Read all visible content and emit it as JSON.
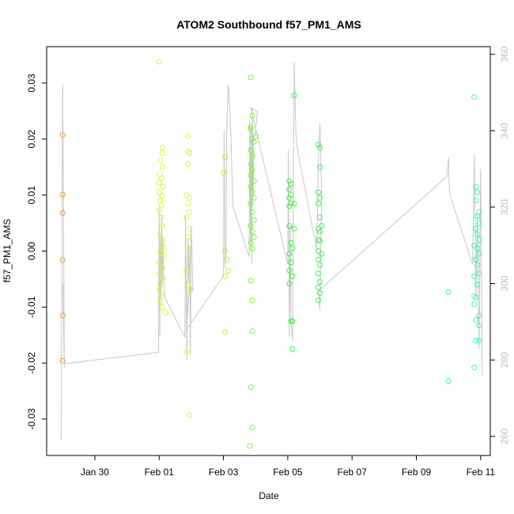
{
  "chart_data": {
    "type": "scatter",
    "title": "ATOM2 Southbound f57_PM1_AMS",
    "xlabel": "Date",
    "ylabel": "f57_PM1_AMS",
    "xlim": [
      -2.5,
      11.3
    ],
    "ylim": [
      -0.0365,
      0.0365
    ],
    "y2lim": [
      255,
      362
    ],
    "x_ticks": [
      {
        "value": -1,
        "label": "Jan 30"
      },
      {
        "value": 1,
        "label": "Feb 01"
      },
      {
        "value": 3,
        "label": "Feb 03"
      },
      {
        "value": 5,
        "label": "Feb 05"
      },
      {
        "value": 7,
        "label": "Feb 07"
      },
      {
        "value": 9,
        "label": "Feb 09"
      },
      {
        "value": 11,
        "label": "Feb 11"
      }
    ],
    "y_ticks": [
      {
        "value": -0.03,
        "label": "-0.03"
      },
      {
        "value": -0.02,
        "label": "-0.02"
      },
      {
        "value": -0.01,
        "label": "-0.01"
      },
      {
        "value": 0.0,
        "label": "0.00"
      },
      {
        "value": 0.01,
        "label": "0.01"
      },
      {
        "value": 0.02,
        "label": "0.02"
      },
      {
        "value": 0.03,
        "label": "0.03"
      }
    ],
    "y2_ticks": [
      {
        "value": 260,
        "label": "260"
      },
      {
        "value": 280,
        "label": "280"
      },
      {
        "value": 300,
        "label": "300"
      },
      {
        "value": 320,
        "label": "320"
      },
      {
        "value": 340,
        "label": "340"
      },
      {
        "value": 360,
        "label": "360"
      }
    ],
    "points": [
      {
        "x": -2.0,
        "y": 0.0207,
        "color": "#f39a3a"
      },
      {
        "x": -2.0,
        "y": 0.0101,
        "color": "#f39a3a"
      },
      {
        "x": -2.0,
        "y": 0.0068,
        "color": "#f39a3a"
      },
      {
        "x": -2.0,
        "y": -0.0016,
        "color": "#f39a3a"
      },
      {
        "x": -2.0,
        "y": -0.0115,
        "color": "#f39a3a"
      },
      {
        "x": -2.0,
        "y": -0.0196,
        "color": "#f39a3a"
      },
      {
        "x": 1.0,
        "y": 0.0338,
        "color": "#e4f23a"
      },
      {
        "x": 1.1,
        "y": 0.0185,
        "color": "#e4f23a"
      },
      {
        "x": 1.1,
        "y": 0.0175,
        "color": "#e4f23a"
      },
      {
        "x": 1.05,
        "y": 0.0162,
        "color": "#e4f23a"
      },
      {
        "x": 1.1,
        "y": 0.015,
        "color": "#e4f23a"
      },
      {
        "x": 1.02,
        "y": 0.0138,
        "color": "#e4f23a"
      },
      {
        "x": 1.08,
        "y": 0.013,
        "color": "#e4f23a"
      },
      {
        "x": 1.0,
        "y": 0.0122,
        "color": "#e4f23a"
      },
      {
        "x": 1.12,
        "y": 0.0115,
        "color": "#e4f23a"
      },
      {
        "x": 1.0,
        "y": 0.0105,
        "color": "#e4f23a"
      },
      {
        "x": 1.1,
        "y": 0.0098,
        "color": "#e4f23a"
      },
      {
        "x": 1.03,
        "y": 0.009,
        "color": "#e4f23a"
      },
      {
        "x": 1.08,
        "y": 0.0082,
        "color": "#e4f23a"
      },
      {
        "x": 1.0,
        "y": 0.0072,
        "color": "#e4f23a"
      },
      {
        "x": 1.06,
        "y": 0.006,
        "color": "#e4f23a"
      },
      {
        "x": 1.1,
        "y": 0.0045,
        "color": "#e4f23a"
      },
      {
        "x": 1.02,
        "y": 0.003,
        "color": "#e4f23a"
      },
      {
        "x": 1.12,
        "y": 0.002,
        "color": "#e4f23a"
      },
      {
        "x": 1.08,
        "y": 0.001,
        "color": "#e4f23a"
      },
      {
        "x": 1.15,
        "y": 0.0005,
        "color": "#e4f23a"
      },
      {
        "x": 1.04,
        "y": -0.0003,
        "color": "#e4f23a"
      },
      {
        "x": 1.15,
        "y": -0.001,
        "color": "#e4f23a"
      },
      {
        "x": 1.0,
        "y": -0.002,
        "color": "#e4f23a"
      },
      {
        "x": 1.1,
        "y": -0.003,
        "color": "#e4f23a"
      },
      {
        "x": 1.0,
        "y": -0.004,
        "color": "#e4f23a"
      },
      {
        "x": 1.12,
        "y": -0.0048,
        "color": "#e4f23a"
      },
      {
        "x": 1.02,
        "y": -0.006,
        "color": "#e4f23a"
      },
      {
        "x": 1.0,
        "y": -0.007,
        "color": "#e4f23a"
      },
      {
        "x": 1.08,
        "y": -0.008,
        "color": "#e4f23a"
      },
      {
        "x": 1.04,
        "y": -0.009,
        "color": "#e4f23a"
      },
      {
        "x": 1.1,
        "y": -0.01,
        "color": "#e4f23a"
      },
      {
        "x": 1.2,
        "y": -0.011,
        "color": "#e4f23a"
      },
      {
        "x": 1.9,
        "y": 0.0205,
        "color": "#e4f23a"
      },
      {
        "x": 1.9,
        "y": 0.0178,
        "color": "#e4f23a"
      },
      {
        "x": 1.95,
        "y": 0.0175,
        "color": "#e4f23a"
      },
      {
        "x": 1.9,
        "y": 0.0155,
        "color": "#e4f23a"
      },
      {
        "x": 1.85,
        "y": 0.01,
        "color": "#e4f23a"
      },
      {
        "x": 1.95,
        "y": 0.0095,
        "color": "#e4f23a"
      },
      {
        "x": 1.9,
        "y": 0.0085,
        "color": "#e4f23a"
      },
      {
        "x": 1.95,
        "y": 0.007,
        "color": "#e4f23a"
      },
      {
        "x": 1.85,
        "y": 0.006,
        "color": "#e4f23a"
      },
      {
        "x": 1.95,
        "y": 0.004,
        "color": "#e4f23a"
      },
      {
        "x": 1.9,
        "y": 0.0025,
        "color": "#e4f23a"
      },
      {
        "x": 1.9,
        "y": 0.0005,
        "color": "#e4f23a"
      },
      {
        "x": 1.95,
        "y": -0.0015,
        "color": "#e4f23a"
      },
      {
        "x": 1.85,
        "y": -0.0035,
        "color": "#e4f23a"
      },
      {
        "x": 1.9,
        "y": -0.006,
        "color": "#e4f23a"
      },
      {
        "x": 1.95,
        "y": -0.007,
        "color": "#e4f23a"
      },
      {
        "x": 1.85,
        "y": -0.018,
        "color": "#e4f23a"
      },
      {
        "x": 1.95,
        "y": -0.0293,
        "color": "#e4f23a"
      },
      {
        "x": 3.05,
        "y": 0.0168,
        "color": "#b4f23a"
      },
      {
        "x": 3.0,
        "y": 0.014,
        "color": "#b4f23a"
      },
      {
        "x": 3.05,
        "y": 0.0,
        "color": "#b4f23a"
      },
      {
        "x": 3.1,
        "y": -0.0015,
        "color": "#b4f23a"
      },
      {
        "x": 3.15,
        "y": -0.0035,
        "color": "#b4f23a"
      },
      {
        "x": 3.05,
        "y": -0.0045,
        "color": "#b4f23a"
      },
      {
        "x": 3.05,
        "y": -0.0145,
        "color": "#b4f23a"
      },
      {
        "x": 3.85,
        "y": 0.031,
        "color": "#7ef23a"
      },
      {
        "x": 3.9,
        "y": 0.0242,
        "color": "#7ef23a"
      },
      {
        "x": 3.85,
        "y": 0.0222,
        "color": "#7ef23a"
      },
      {
        "x": 3.85,
        "y": 0.0218,
        "color": "#7ef23a"
      },
      {
        "x": 4.0,
        "y": 0.0205,
        "color": "#7ef23a"
      },
      {
        "x": 3.88,
        "y": 0.02,
        "color": "#7ef23a"
      },
      {
        "x": 3.95,
        "y": 0.0195,
        "color": "#7ef23a"
      },
      {
        "x": 3.85,
        "y": 0.018,
        "color": "#7ef23a"
      },
      {
        "x": 3.9,
        "y": 0.017,
        "color": "#7ef23a"
      },
      {
        "x": 3.85,
        "y": 0.0155,
        "color": "#7ef23a"
      },
      {
        "x": 3.9,
        "y": 0.0145,
        "color": "#7ef23a"
      },
      {
        "x": 3.85,
        "y": 0.0135,
        "color": "#7ef23a"
      },
      {
        "x": 3.95,
        "y": 0.0125,
        "color": "#7ef23a"
      },
      {
        "x": 3.85,
        "y": 0.0115,
        "color": "#7ef23a"
      },
      {
        "x": 3.9,
        "y": 0.0105,
        "color": "#7ef23a"
      },
      {
        "x": 3.95,
        "y": 0.0095,
        "color": "#7ef23a"
      },
      {
        "x": 3.85,
        "y": 0.0085,
        "color": "#7ef23a"
      },
      {
        "x": 3.9,
        "y": 0.007,
        "color": "#7ef23a"
      },
      {
        "x": 3.95,
        "y": 0.0055,
        "color": "#7ef23a"
      },
      {
        "x": 3.85,
        "y": 0.0045,
        "color": "#7ef23a"
      },
      {
        "x": 3.9,
        "y": 0.0035,
        "color": "#7ef23a"
      },
      {
        "x": 3.95,
        "y": 0.0025,
        "color": "#7ef23a"
      },
      {
        "x": 3.85,
        "y": 0.0015,
        "color": "#7ef23a"
      },
      {
        "x": 3.9,
        "y": 0.0005,
        "color": "#7ef23a"
      },
      {
        "x": 3.85,
        "y": -0.0053,
        "color": "#7ef23a"
      },
      {
        "x": 3.9,
        "y": -0.0088,
        "color": "#7ef23a"
      },
      {
        "x": 3.9,
        "y": -0.0143,
        "color": "#7ef23a"
      },
      {
        "x": 3.85,
        "y": -0.0243,
        "color": "#7ef23a"
      },
      {
        "x": 3.9,
        "y": -0.0315,
        "color": "#7ef23a"
      },
      {
        "x": 3.82,
        "y": -0.0348,
        "color": "#7ef23a"
      },
      {
        "x": 5.2,
        "y": 0.0278,
        "color": "#3af23a"
      },
      {
        "x": 5.05,
        "y": 0.0125,
        "color": "#3af23a"
      },
      {
        "x": 5.1,
        "y": 0.012,
        "color": "#3af23a"
      },
      {
        "x": 5.05,
        "y": 0.011,
        "color": "#3af23a"
      },
      {
        "x": 5.1,
        "y": 0.01,
        "color": "#3af23a"
      },
      {
        "x": 5.05,
        "y": 0.0095,
        "color": "#3af23a"
      },
      {
        "x": 5.1,
        "y": 0.0085,
        "color": "#3af23a"
      },
      {
        "x": 5.05,
        "y": 0.008,
        "color": "#3af23a"
      },
      {
        "x": 5.2,
        "y": 0.0085,
        "color": "#3af23a"
      },
      {
        "x": 5.05,
        "y": 0.0045,
        "color": "#3af23a"
      },
      {
        "x": 5.2,
        "y": 0.004,
        "color": "#3af23a"
      },
      {
        "x": 5.1,
        "y": 0.0015,
        "color": "#3af23a"
      },
      {
        "x": 5.15,
        "y": 0.0005,
        "color": "#3af23a"
      },
      {
        "x": 5.05,
        "y": -0.0005,
        "color": "#3af23a"
      },
      {
        "x": 5.1,
        "y": -0.002,
        "color": "#3af23a"
      },
      {
        "x": 5.05,
        "y": -0.0035,
        "color": "#3af23a"
      },
      {
        "x": 5.15,
        "y": -0.0045,
        "color": "#3af23a"
      },
      {
        "x": 5.05,
        "y": -0.0058,
        "color": "#3af23a"
      },
      {
        "x": 5.1,
        "y": -0.0125,
        "color": "#3af23a"
      },
      {
        "x": 5.15,
        "y": -0.0125,
        "color": "#3af23a"
      },
      {
        "x": 5.15,
        "y": -0.0175,
        "color": "#3af23a"
      },
      {
        "x": 5.95,
        "y": 0.019,
        "color": "#3af25a"
      },
      {
        "x": 6.0,
        "y": 0.0185,
        "color": "#3af25a"
      },
      {
        "x": 6.0,
        "y": 0.015,
        "color": "#3af25a"
      },
      {
        "x": 5.95,
        "y": 0.0105,
        "color": "#3af25a"
      },
      {
        "x": 6.0,
        "y": 0.0095,
        "color": "#3af25a"
      },
      {
        "x": 5.95,
        "y": 0.0085,
        "color": "#3af25a"
      },
      {
        "x": 6.0,
        "y": 0.006,
        "color": "#3af25a"
      },
      {
        "x": 6.05,
        "y": 0.0045,
        "color": "#3af25a"
      },
      {
        "x": 5.95,
        "y": 0.004,
        "color": "#3af25a"
      },
      {
        "x": 6.0,
        "y": 0.0035,
        "color": "#3af25a"
      },
      {
        "x": 5.95,
        "y": 0.002,
        "color": "#3af25a"
      },
      {
        "x": 6.0,
        "y": 0.0018,
        "color": "#3af25a"
      },
      {
        "x": 5.95,
        "y": 0.0,
        "color": "#3af25a"
      },
      {
        "x": 6.05,
        "y": -0.0005,
        "color": "#3af25a"
      },
      {
        "x": 5.95,
        "y": -0.0015,
        "color": "#3af25a"
      },
      {
        "x": 6.0,
        "y": -0.0025,
        "color": "#3af25a"
      },
      {
        "x": 5.95,
        "y": -0.004,
        "color": "#3af25a"
      },
      {
        "x": 6.0,
        "y": -0.0055,
        "color": "#3af25a"
      },
      {
        "x": 5.95,
        "y": -0.0065,
        "color": "#3af25a"
      },
      {
        "x": 6.0,
        "y": -0.0075,
        "color": "#3af25a"
      },
      {
        "x": 5.95,
        "y": -0.0088,
        "color": "#3af25a"
      },
      {
        "x": 10.0,
        "y": -0.0073,
        "color": "#3af2a0"
      },
      {
        "x": 10.0,
        "y": -0.0232,
        "color": "#3af2a0"
      },
      {
        "x": 10.8,
        "y": 0.0275,
        "color": "#3af2c8"
      },
      {
        "x": 10.85,
        "y": 0.0115,
        "color": "#3af2c8"
      },
      {
        "x": 10.9,
        "y": 0.0105,
        "color": "#3af2c8"
      },
      {
        "x": 10.85,
        "y": 0.009,
        "color": "#3af2c8"
      },
      {
        "x": 10.95,
        "y": 0.007,
        "color": "#3af2c8"
      },
      {
        "x": 10.9,
        "y": 0.0062,
        "color": "#3af2c8"
      },
      {
        "x": 10.95,
        "y": 0.005,
        "color": "#3af2c8"
      },
      {
        "x": 10.85,
        "y": 0.004,
        "color": "#3af2c8"
      },
      {
        "x": 10.9,
        "y": 0.003,
        "color": "#3af2c8"
      },
      {
        "x": 10.95,
        "y": 0.002,
        "color": "#3af2c8"
      },
      {
        "x": 10.8,
        "y": 0.001,
        "color": "#3af2c8"
      },
      {
        "x": 10.9,
        "y": 0.0005,
        "color": "#3af2c8"
      },
      {
        "x": 10.95,
        "y": -0.0005,
        "color": "#3af2c8"
      },
      {
        "x": 10.85,
        "y": -0.0015,
        "color": "#3af2c8"
      },
      {
        "x": 10.9,
        "y": -0.0025,
        "color": "#3af2c8"
      },
      {
        "x": 10.95,
        "y": -0.004,
        "color": "#3af2c8"
      },
      {
        "x": 10.8,
        "y": -0.0045,
        "color": "#3af2c8"
      },
      {
        "x": 10.9,
        "y": -0.006,
        "color": "#3af2c8"
      },
      {
        "x": 10.8,
        "y": -0.008,
        "color": "#3af2c8"
      },
      {
        "x": 10.85,
        "y": -0.0083,
        "color": "#3af2c8"
      },
      {
        "x": 10.8,
        "y": -0.0095,
        "color": "#3af2c8"
      },
      {
        "x": 10.95,
        "y": -0.0115,
        "color": "#3af2c8"
      },
      {
        "x": 10.85,
        "y": -0.0123,
        "color": "#3af2c8"
      },
      {
        "x": 10.95,
        "y": -0.0133,
        "color": "#3af2c8"
      },
      {
        "x": 10.85,
        "y": -0.016,
        "color": "#3af2c8"
      },
      {
        "x": 10.95,
        "y": -0.016,
        "color": "#3af2c8"
      },
      {
        "x": 10.8,
        "y": -0.0208,
        "color": "#3af2c8"
      }
    ],
    "line2": {
      "color": "#c8c8c8",
      "x": [
        -2.05,
        -2.0,
        -1.95,
        -2.0,
        -1.95,
        0.98,
        1.0,
        1.02,
        1.04,
        1.06,
        1.08,
        1.1,
        1.12,
        1.15,
        1.2,
        1.8,
        1.82,
        1.86,
        1.88,
        1.9,
        1.92,
        1.95,
        1.97,
        2.0,
        2.05,
        1.95,
        1.85,
        3.0,
        3.02,
        3.05,
        3.08,
        3.1,
        3.15,
        3.2,
        3.3,
        3.8,
        3.82,
        3.84,
        3.86,
        3.88,
        3.9,
        3.92,
        3.95,
        4.0,
        4.05,
        3.85,
        5.0,
        5.02,
        5.05,
        5.08,
        5.1,
        5.15,
        5.2,
        5.25,
        5.3,
        5.9,
        5.95,
        6.0,
        6.02,
        6.05,
        6.0,
        5.95,
        9.95,
        10.0,
        10.02,
        10.05,
        10.75,
        10.8,
        10.85,
        10.9,
        10.95,
        11.0,
        11.05
      ],
      "y": [
        259,
        352,
        278,
        300,
        279,
        282,
        320,
        286,
        313,
        296,
        318,
        300,
        312,
        298,
        296,
        286,
        318,
        280,
        305,
        312,
        300,
        310,
        281,
        315,
        298,
        300,
        288,
        302,
        340,
        304,
        310,
        340,
        352,
        346,
        320,
        307,
        343,
        310,
        341,
        305,
        346,
        322,
        338,
        340,
        345,
        346,
        305,
        335,
        286,
        315,
        290,
        285,
        358,
        340,
        335,
        309,
        330,
        342,
        336,
        323,
        293,
        298,
        328,
        333,
        325,
        323,
        305,
        334,
        296,
        318,
        283,
        330,
        276
      ]
    }
  }
}
